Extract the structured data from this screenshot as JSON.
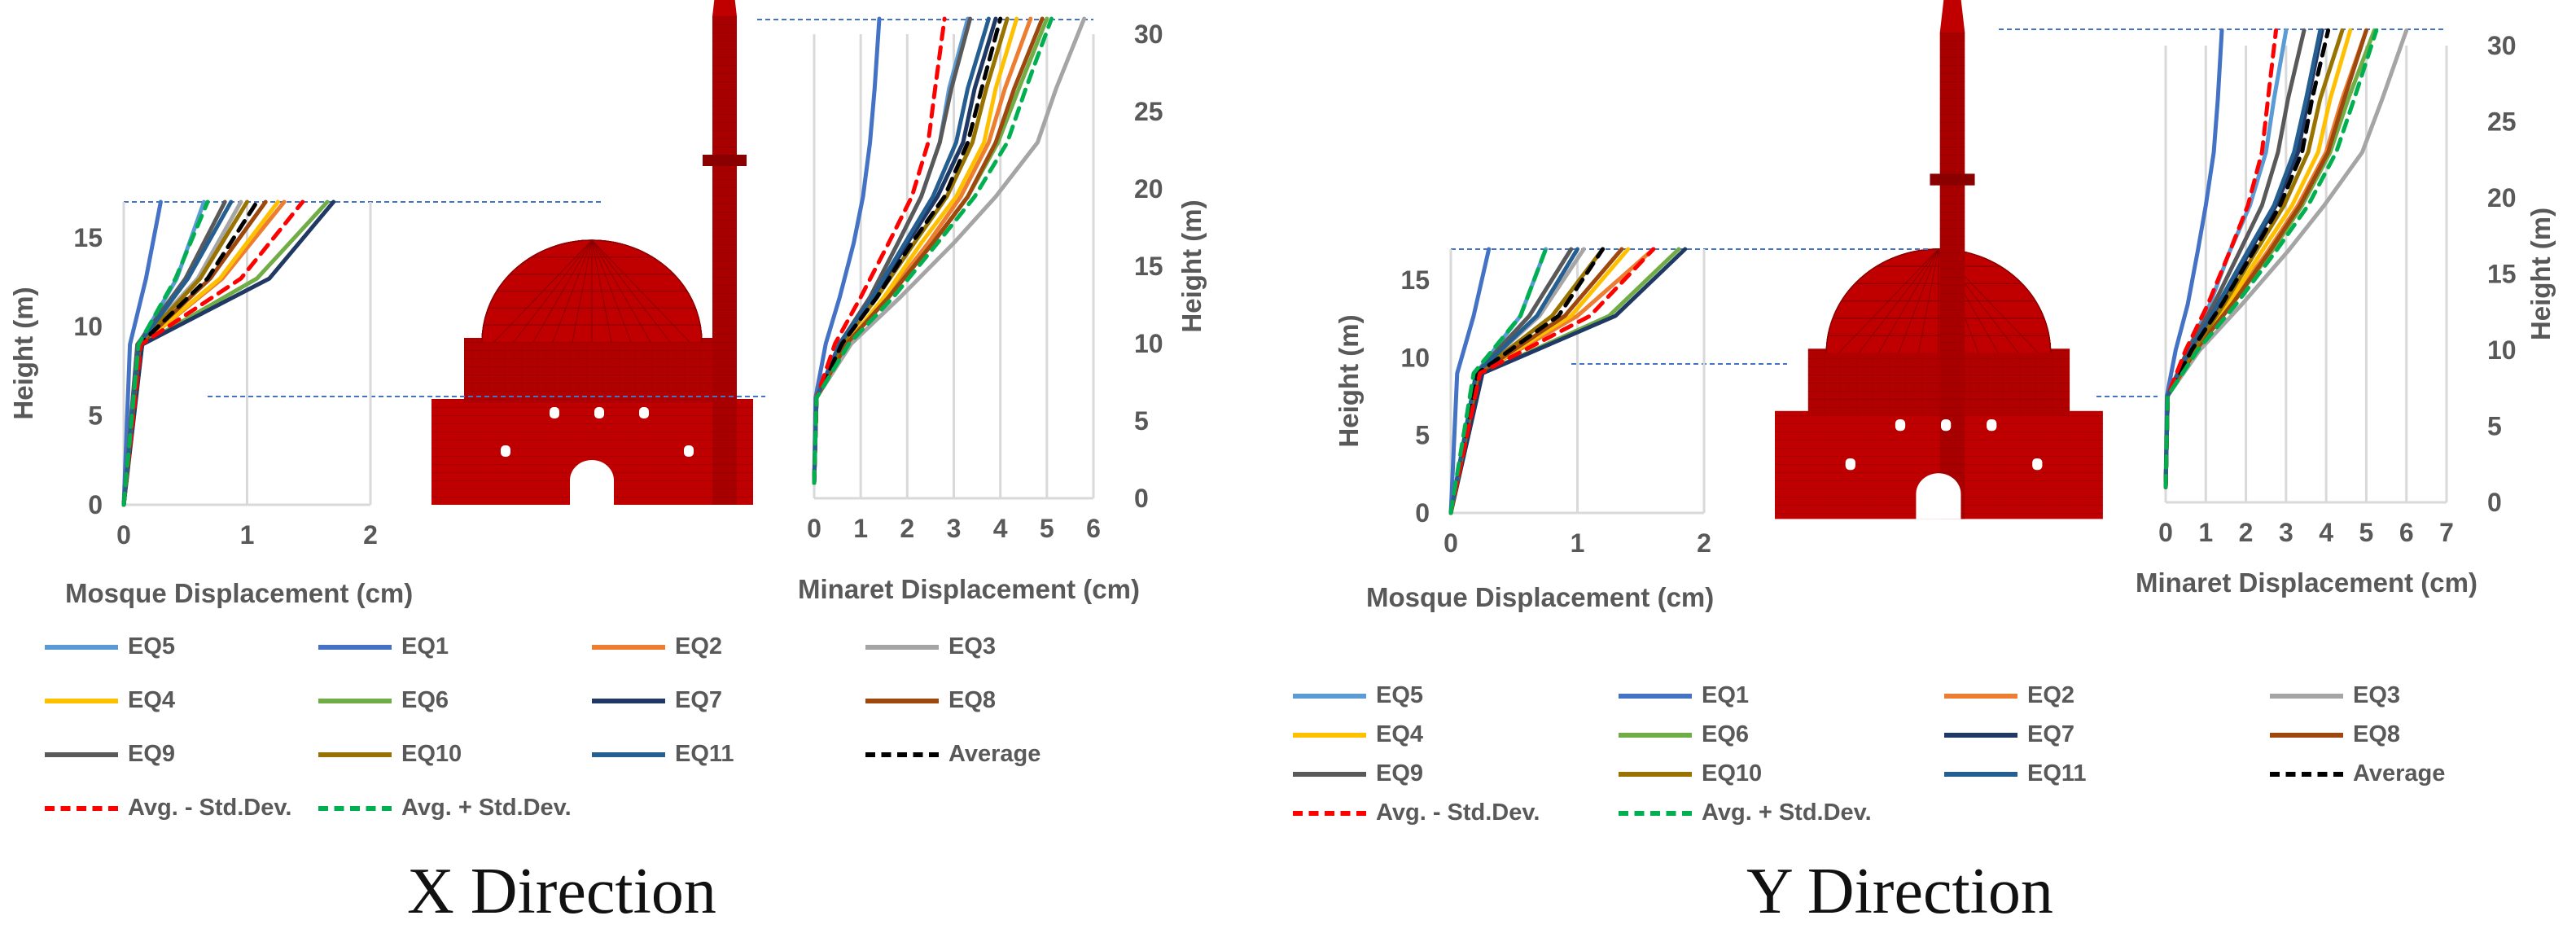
{
  "captions": {
    "x": "X Direction",
    "y": "Y Direction"
  },
  "series_styles": [
    {
      "name": "EQ5",
      "color": "#5B9BD5",
      "dash": false
    },
    {
      "name": "EQ1",
      "color": "#4472C4",
      "dash": false
    },
    {
      "name": "EQ2",
      "color": "#ED7D31",
      "dash": false
    },
    {
      "name": "EQ3",
      "color": "#A5A5A5",
      "dash": false
    },
    {
      "name": "EQ4",
      "color": "#FFC000",
      "dash": false
    },
    {
      "name": "EQ6",
      "color": "#70AD47",
      "dash": false
    },
    {
      "name": "EQ7",
      "color": "#1F3864",
      "dash": false
    },
    {
      "name": "EQ8",
      "color": "#9E480E",
      "dash": false
    },
    {
      "name": "EQ9",
      "color": "#595959",
      "dash": false
    },
    {
      "name": "EQ10",
      "color": "#997300",
      "dash": false
    },
    {
      "name": "EQ11",
      "color": "#255E91",
      "dash": false
    },
    {
      "name": "Average",
      "color": "#000000",
      "dash": true
    },
    {
      "name": "Avg. - Std.Dev.",
      "color": "#FF0000",
      "dash": true
    },
    {
      "name": "Avg. + Std.Dev.",
      "color": "#00B050",
      "dash": true
    }
  ],
  "model_color": "#C00000",
  "chart_data": [
    {
      "id": "x-mosque",
      "type": "line",
      "xlabel": "Mosque Displacement (cm)",
      "ylabel": "Height (m)",
      "xlim": [
        0,
        2
      ],
      "ylim": [
        0,
        17
      ],
      "xticks": [
        0,
        1,
        2
      ],
      "yticks": [
        0,
        5,
        10,
        15
      ],
      "y": [
        0,
        9,
        12.7,
        17
      ],
      "series": [
        {
          "name": "EQ5",
          "values": [
            0,
            0.12,
            0.43,
            0.65
          ]
        },
        {
          "name": "EQ1",
          "values": [
            0,
            0.05,
            0.18,
            0.3
          ]
        },
        {
          "name": "EQ2",
          "values": [
            0,
            0.14,
            0.8,
            1.3
          ]
        },
        {
          "name": "EQ3",
          "values": [
            0,
            0.11,
            0.6,
            0.95
          ]
        },
        {
          "name": "EQ4",
          "values": [
            0,
            0.14,
            0.78,
            1.25
          ]
        },
        {
          "name": "EQ6",
          "values": [
            0,
            0.15,
            1.08,
            1.65
          ]
        },
        {
          "name": "EQ7",
          "values": [
            0,
            0.15,
            1.18,
            1.7
          ]
        },
        {
          "name": "EQ8",
          "values": [
            0,
            0.13,
            0.7,
            1.15
          ]
        },
        {
          "name": "EQ9",
          "values": [
            0,
            0.11,
            0.5,
            0.82
          ]
        },
        {
          "name": "EQ10",
          "values": [
            0,
            0.12,
            0.62,
            1.0
          ]
        },
        {
          "name": "EQ11",
          "values": [
            0,
            0.12,
            0.52,
            0.87
          ]
        },
        {
          "name": "Average",
          "values": [
            0,
            0.13,
            0.68,
            1.08
          ]
        },
        {
          "name": "Avg. - Std.Dev.",
          "values": [
            0,
            0.14,
            0.95,
            1.45
          ]
        },
        {
          "name": "Avg. + Std.Dev.",
          "values": [
            0,
            0.12,
            0.42,
            0.68
          ]
        }
      ]
    },
    {
      "id": "x-minaret",
      "type": "line",
      "xlabel": "Minaret Displacement (cm)",
      "ylabel": "Height (m)",
      "xlim": [
        0,
        6
      ],
      "ylim": [
        0,
        30
      ],
      "xticks": [
        0,
        1,
        2,
        3,
        4,
        5,
        6
      ],
      "yticks": [
        0,
        5,
        10,
        15,
        20,
        25,
        30
      ],
      "y": [
        1,
        6.5,
        10,
        13,
        16.5,
        19.5,
        23,
        26.5,
        31
      ],
      "series": [
        {
          "name": "EQ5",
          "values": [
            0,
            0.05,
            0.55,
            1.2,
            1.8,
            2.3,
            2.7,
            2.9,
            3.3
          ]
        },
        {
          "name": "EQ1",
          "values": [
            0,
            0.03,
            0.25,
            0.55,
            0.85,
            1.05,
            1.2,
            1.3,
            1.4
          ]
        },
        {
          "name": "EQ2",
          "values": [
            0,
            0.05,
            0.7,
            1.55,
            2.45,
            3.15,
            3.75,
            4.1,
            4.65
          ]
        },
        {
          "name": "EQ3",
          "values": [
            0,
            0.05,
            0.8,
            1.85,
            3.0,
            3.9,
            4.8,
            5.2,
            5.8
          ]
        },
        {
          "name": "EQ4",
          "values": [
            0,
            0.05,
            0.7,
            1.5,
            2.3,
            3.05,
            3.65,
            3.9,
            4.35
          ]
        },
        {
          "name": "EQ6",
          "values": [
            0,
            0.05,
            0.7,
            1.6,
            2.55,
            3.3,
            3.95,
            4.4,
            5.0
          ]
        },
        {
          "name": "EQ7",
          "values": [
            0,
            0.05,
            0.6,
            1.3,
            2.0,
            2.65,
            3.2,
            3.45,
            3.9
          ]
        },
        {
          "name": "EQ8",
          "values": [
            0,
            0.05,
            0.7,
            1.6,
            2.55,
            3.3,
            3.9,
            4.3,
            4.9
          ]
        },
        {
          "name": "EQ9",
          "values": [
            0,
            0.05,
            0.55,
            1.2,
            1.8,
            2.3,
            2.7,
            2.95,
            3.35
          ]
        },
        {
          "name": "EQ10",
          "values": [
            0,
            0.05,
            0.6,
            1.35,
            2.15,
            2.85,
            3.4,
            3.7,
            4.15
          ]
        },
        {
          "name": "EQ11",
          "values": [
            0,
            0.05,
            0.55,
            1.25,
            1.95,
            2.55,
            3.05,
            3.3,
            3.75
          ]
        },
        {
          "name": "Average",
          "values": [
            0,
            0.05,
            0.6,
            1.35,
            2.1,
            2.8,
            3.3,
            3.6,
            4.0
          ]
        },
        {
          "name": "Avg. - Std.Dev.",
          "values": [
            0,
            0.05,
            0.45,
            1.0,
            1.6,
            2.1,
            2.45,
            2.6,
            2.8
          ]
        },
        {
          "name": "Avg. + Std.Dev.",
          "values": [
            0,
            0.05,
            0.75,
            1.7,
            2.65,
            3.45,
            4.15,
            4.55,
            5.1
          ]
        }
      ]
    },
    {
      "id": "y-mosque",
      "type": "line",
      "xlabel": "Mosque Displacement (cm)",
      "ylabel": "Height (m)",
      "xlim": [
        0,
        2
      ],
      "ylim": [
        0,
        17
      ],
      "xticks": [
        0,
        1,
        2
      ],
      "yticks": [
        0,
        5,
        10,
        15
      ],
      "y": [
        0,
        9,
        12.7,
        17
      ],
      "series": [
        {
          "name": "EQ5",
          "values": [
            0,
            0.2,
            0.55,
            0.75
          ]
        },
        {
          "name": "EQ1",
          "values": [
            0,
            0.05,
            0.18,
            0.3
          ]
        },
        {
          "name": "EQ2",
          "values": [
            0,
            0.22,
            1.0,
            1.6
          ]
        },
        {
          "name": "EQ3",
          "values": [
            0,
            0.2,
            0.7,
            1.05
          ]
        },
        {
          "name": "EQ4",
          "values": [
            0,
            0.22,
            0.95,
            1.4
          ]
        },
        {
          "name": "EQ6",
          "values": [
            0,
            0.25,
            1.25,
            1.8
          ]
        },
        {
          "name": "EQ7",
          "values": [
            0,
            0.25,
            1.3,
            1.85
          ]
        },
        {
          "name": "EQ8",
          "values": [
            0,
            0.22,
            0.9,
            1.35
          ]
        },
        {
          "name": "EQ9",
          "values": [
            0,
            0.2,
            0.62,
            0.95
          ]
        },
        {
          "name": "EQ10",
          "values": [
            0,
            0.21,
            0.8,
            1.2
          ]
        },
        {
          "name": "EQ11",
          "values": [
            0,
            0.2,
            0.68,
            1.0
          ]
        },
        {
          "name": "Average",
          "values": [
            0,
            0.21,
            0.85,
            1.2
          ]
        },
        {
          "name": "Avg. - Std.Dev.",
          "values": [
            0,
            0.23,
            1.1,
            1.6
          ]
        },
        {
          "name": "Avg. + Std.Dev.",
          "values": [
            0,
            0.18,
            0.55,
            0.75
          ]
        }
      ]
    },
    {
      "id": "y-minaret",
      "type": "line",
      "xlabel": "Minaret Displacement (cm)",
      "ylabel": "Height (m)",
      "xlim": [
        0,
        7
      ],
      "ylim": [
        0,
        30
      ],
      "xticks": [
        0,
        1,
        2,
        3,
        4,
        5,
        6,
        7
      ],
      "yticks": [
        0,
        5,
        10,
        15,
        20,
        25,
        30
      ],
      "y": [
        1,
        7,
        10,
        13,
        16.5,
        19.5,
        23,
        26.5,
        31
      ],
      "series": [
        {
          "name": "EQ5",
          "values": [
            0,
            0.05,
            0.55,
            1.1,
            1.6,
            2.1,
            2.5,
            2.7,
            3.0
          ]
        },
        {
          "name": "EQ1",
          "values": [
            0,
            0.03,
            0.25,
            0.55,
            0.8,
            1.0,
            1.2,
            1.3,
            1.4
          ]
        },
        {
          "name": "EQ2",
          "values": [
            0,
            0.05,
            0.75,
            1.6,
            2.55,
            3.3,
            4.0,
            4.4,
            5.0
          ]
        },
        {
          "name": "EQ3",
          "values": [
            0,
            0.05,
            0.85,
            1.9,
            3.05,
            3.95,
            4.9,
            5.4,
            6.0
          ]
        },
        {
          "name": "EQ4",
          "values": [
            0,
            0.05,
            0.75,
            1.55,
            2.4,
            3.15,
            3.8,
            4.1,
            4.6
          ]
        },
        {
          "name": "EQ6",
          "values": [
            0,
            0.05,
            0.75,
            1.65,
            2.65,
            3.4,
            4.1,
            4.55,
            5.2
          ]
        },
        {
          "name": "EQ7",
          "values": [
            0,
            0.05,
            0.65,
            1.35,
            2.1,
            2.75,
            3.3,
            3.55,
            3.9
          ]
        },
        {
          "name": "EQ8",
          "values": [
            0,
            0.05,
            0.75,
            1.65,
            2.6,
            3.35,
            4.05,
            4.45,
            5.0
          ]
        },
        {
          "name": "EQ9",
          "values": [
            0,
            0.05,
            0.55,
            1.2,
            1.85,
            2.4,
            2.8,
            3.05,
            3.45
          ]
        },
        {
          "name": "EQ10",
          "values": [
            0,
            0.05,
            0.7,
            1.45,
            2.25,
            2.95,
            3.55,
            3.85,
            4.4
          ]
        },
        {
          "name": "EQ11",
          "values": [
            0,
            0.05,
            0.6,
            1.3,
            2.05,
            2.7,
            3.2,
            3.5,
            3.85
          ]
        },
        {
          "name": "Average",
          "values": [
            0,
            0.05,
            0.65,
            1.4,
            2.2,
            2.85,
            3.4,
            3.65,
            4.05
          ]
        },
        {
          "name": "Avg. - Std.Dev.",
          "values": [
            0,
            0.05,
            0.5,
            1.05,
            1.6,
            2.05,
            2.4,
            2.55,
            2.75
          ]
        },
        {
          "name": "Avg. + Std.Dev.",
          "values": [
            0,
            0.05,
            0.8,
            1.75,
            2.75,
            3.55,
            4.25,
            4.7,
            5.25
          ]
        }
      ]
    }
  ]
}
